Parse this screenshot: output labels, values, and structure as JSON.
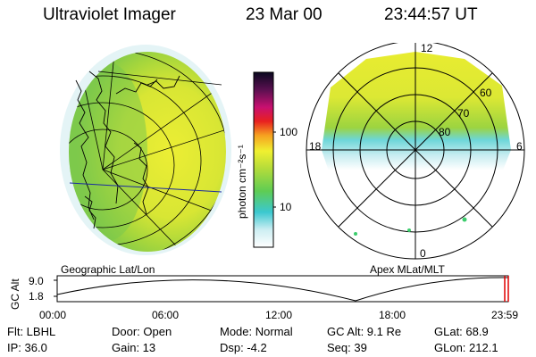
{
  "header": {
    "title": "Ultraviolet Imager",
    "date": "23 Mar 00",
    "time": "23:44:57 UT"
  },
  "geo_panel": {
    "label": "Geographic Lat/Lon"
  },
  "colorbar": {
    "unit": "photon cm⁻²s⁻¹",
    "ticks": [
      "100",
      "10"
    ],
    "scale": "log"
  },
  "polar_panel": {
    "label": "Apex MLat/MLT",
    "mlt_labels": {
      "top": "12",
      "left": "18",
      "right": "6",
      "bottom": "0"
    },
    "lat_labels": [
      "60",
      "70",
      "80"
    ]
  },
  "altitude_plot": {
    "axis_label": "GC Alt",
    "y_ticks": [
      "9.0",
      "1.8"
    ],
    "x_ticks": [
      "00:00",
      "06:00",
      "12:00",
      "18:00",
      "23:59"
    ]
  },
  "info": {
    "filter": "Flt: LBHL",
    "door": "Door: Open",
    "mode": "Mode: Normal",
    "gc_alt": "GC Alt: 9.1 Re",
    "glat": "GLat:  68.9",
    "ip": "IP: 36.0",
    "gain": "Gain: 13",
    "dsp": "Dsp:    -4.2",
    "seq": "Seq: 39",
    "glon": "GLon: 212.1"
  },
  "colors": {
    "glow_yellow": "#e8ec30",
    "glow_green": "#9ad43c",
    "glow_cyan": "#6fd6dc",
    "marker_red": "#e00000"
  }
}
